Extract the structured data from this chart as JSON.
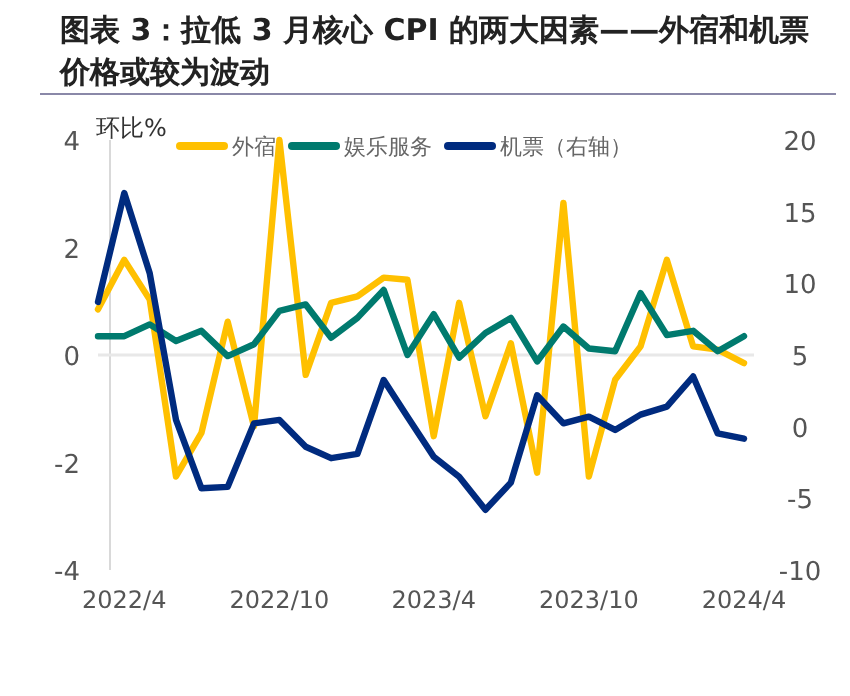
{
  "chart_data": {
    "type": "line",
    "title": "图表 3：拉低 3 月核心 CPI 的两大因素——外宿和机票价格或较为波动",
    "ylabel": "环比%",
    "x": [
      "2022-03",
      "2022-04",
      "2022-05",
      "2022-06",
      "2022-07",
      "2022-08",
      "2022-09",
      "2022-10",
      "2022-11",
      "2022-12",
      "2023-01",
      "2023-02",
      "2023-03",
      "2023-04",
      "2023-05",
      "2023-06",
      "2023-07",
      "2023-08",
      "2023-09",
      "2023-10",
      "2023-11",
      "2023-12",
      "2024-01",
      "2024-02",
      "2024-03",
      "2024-04"
    ],
    "series": [
      {
        "name": "外宿",
        "color": "#FFC000",
        "values": [
          0.85,
          1.77,
          1.03,
          -2.26,
          -1.45,
          0.62,
          -1.33,
          4.0,
          -0.37,
          0.97,
          1.09,
          1.44,
          1.4,
          -1.51,
          0.97,
          -1.14,
          0.22,
          -2.19,
          2.83,
          -2.26,
          -0.46,
          0.16,
          1.77,
          0.16,
          0.1,
          -0.15
        ]
      },
      {
        "name": "娱乐服务",
        "color": "#007A6E",
        "values": [
          0.35,
          0.35,
          0.57,
          0.26,
          0.45,
          -0.02,
          0.2,
          0.82,
          0.94,
          0.32,
          0.69,
          1.21,
          0.0,
          0.76,
          -0.05,
          0.41,
          0.69,
          -0.12,
          0.53,
          0.12,
          0.07,
          1.15,
          0.37,
          0.45,
          0.07,
          0.35
        ]
      },
      {
        "name": "机票（右轴）",
        "color": "#002B7F",
        "axis": "y2",
        "values": [
          8.7,
          16.3,
          10.7,
          0.47,
          -4.3,
          -4.2,
          0.23,
          0.47,
          -1.4,
          -2.2,
          -1.9,
          3.26,
          0.7,
          -2.1,
          -3.5,
          -5.8,
          -3.9,
          2.19,
          0.23,
          0.7,
          -0.23,
          0.84,
          1.4,
          3.5,
          -0.47,
          -0.84
        ]
      }
    ],
    "xlim": [
      "2022-03",
      "2024-04"
    ],
    "xticks": [
      {
        "value": "2022-04",
        "label": "2022/4"
      },
      {
        "value": "2022-10",
        "label": "2022/10"
      },
      {
        "value": "2023-04",
        "label": "2023/4"
      },
      {
        "value": "2023-10",
        "label": "2023/10"
      },
      {
        "value": "2024-04",
        "label": "2024/4"
      }
    ],
    "ylim": [
      -4,
      4
    ],
    "yticks": [
      -4,
      -2,
      0,
      2,
      4
    ],
    "y2lim": [
      -10,
      20
    ],
    "y2ticks": [
      -10,
      -5,
      0,
      5,
      10,
      15,
      20
    ],
    "ref_lines": [
      {
        "axis": "y",
        "value": 0,
        "color": "#e8e8e8"
      }
    ],
    "legend": "top",
    "marker": "none",
    "line_style": "solid"
  }
}
